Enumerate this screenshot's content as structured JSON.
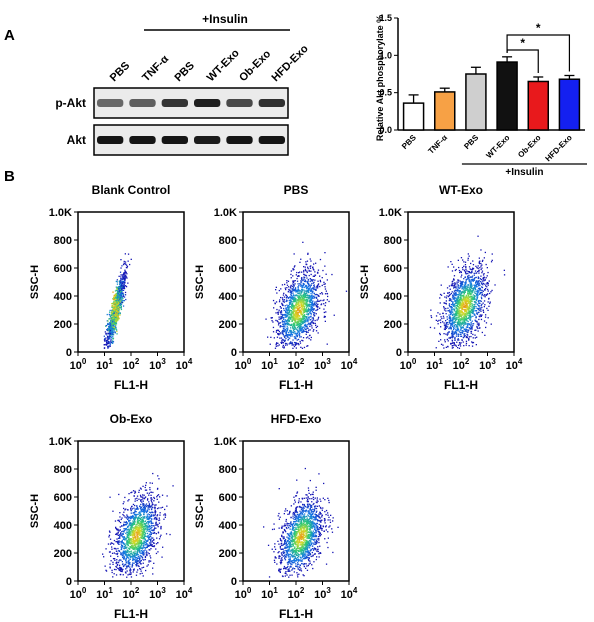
{
  "panel_a": {
    "label": "A",
    "western_blot": {
      "insulin_header": "+Insulin",
      "lanes": [
        "PBS",
        "TNF-α",
        "PBS",
        "WT-Exo",
        "Ob-Exo",
        "HFD-Exo"
      ],
      "rows": [
        {
          "label": "p-Akt",
          "intensity": [
            0.55,
            0.6,
            0.8,
            0.9,
            0.7,
            0.82
          ]
        },
        {
          "label": "Akt",
          "intensity": [
            0.95,
            0.95,
            0.95,
            0.92,
            0.95,
            0.95
          ]
        }
      ]
    }
  },
  "panel_b": {
    "label": "B"
  },
  "chart_data": [
    {
      "type": "bar",
      "title": "",
      "ylabel": "Relative Akt phosphorylate %",
      "xlabel": "",
      "group_label": "+Insulin",
      "categories": [
        "PBS",
        "TNF-α",
        "PBS",
        "WT-Exo",
        "Ob-Exo",
        "HFD-Exo"
      ],
      "values": [
        0.36,
        0.51,
        0.75,
        0.91,
        0.65,
        0.68
      ],
      "errors": [
        0.11,
        0.05,
        0.09,
        0.07,
        0.06,
        0.05
      ],
      "colors": [
        "#ffffff",
        "#f7a145",
        "#cfcfcf",
        "#111111",
        "#e8191c",
        "#1420f0"
      ],
      "ylim": [
        0,
        1.5
      ],
      "yticks": [
        "0.0",
        "0.5",
        "1.0",
        "1.5"
      ],
      "significance": [
        {
          "from": 3,
          "to": 4,
          "label": "*"
        },
        {
          "from": 3,
          "to": 5,
          "label": "*"
        }
      ]
    },
    {
      "type": "scatter",
      "title": "Blank Control",
      "xlabel": "FL1-H",
      "ylabel": "SSC-H",
      "x_scale": "log",
      "xticks": [
        "10",
        "10",
        "10",
        "10",
        "10"
      ],
      "xtick_exp": [
        "0",
        "1",
        "2",
        "3",
        "4"
      ],
      "yticks": [
        "0",
        "200",
        "400",
        "600",
        "800",
        "1.0K"
      ],
      "xlim": [
        1,
        10000
      ],
      "ylim": [
        0,
        1000
      ],
      "density_center": [
        25,
        300
      ],
      "density_shape": "narrow diagonal"
    },
    {
      "type": "scatter",
      "title": "PBS",
      "xlabel": "FL1-H",
      "ylabel": "SSC-H",
      "x_scale": "log",
      "xticks": [
        "10",
        "10",
        "10",
        "10",
        "10"
      ],
      "xtick_exp": [
        "0",
        "1",
        "2",
        "3",
        "4"
      ],
      "yticks": [
        "0",
        "200",
        "400",
        "600",
        "800",
        "1.0K"
      ],
      "xlim": [
        1,
        10000
      ],
      "ylim": [
        0,
        1000
      ],
      "density_center": [
        120,
        300
      ],
      "density_shape": "broad"
    },
    {
      "type": "scatter",
      "title": "WT-Exo",
      "xlabel": "FL1-H",
      "ylabel": "SSC-H",
      "x_scale": "log",
      "xticks": [
        "10",
        "10",
        "10",
        "10",
        "10"
      ],
      "xtick_exp": [
        "0",
        "1",
        "2",
        "3",
        "4"
      ],
      "yticks": [
        "0",
        "200",
        "400",
        "600",
        "800",
        "1.0K"
      ],
      "xlim": [
        1,
        10000
      ],
      "ylim": [
        0,
        1000
      ],
      "density_center": [
        130,
        330
      ],
      "density_shape": "broad"
    },
    {
      "type": "scatter",
      "title": "Ob-Exo",
      "xlabel": "FL1-H",
      "ylabel": "SSC-H",
      "x_scale": "log",
      "xticks": [
        "10",
        "10",
        "10",
        "10",
        "10"
      ],
      "xtick_exp": [
        "0",
        "1",
        "2",
        "3",
        "4"
      ],
      "yticks": [
        "0",
        "200",
        "400",
        "600",
        "800",
        "1.0K"
      ],
      "xlim": [
        1,
        10000
      ],
      "ylim": [
        0,
        1000
      ],
      "density_center": [
        150,
        330
      ],
      "density_shape": "broad"
    },
    {
      "type": "scatter",
      "title": "HFD-Exo",
      "xlabel": "FL1-H",
      "ylabel": "SSC-H",
      "x_scale": "log",
      "xticks": [
        "10",
        "10",
        "10",
        "10",
        "10"
      ],
      "xtick_exp": [
        "0",
        "1",
        "2",
        "3",
        "4"
      ],
      "yticks": [
        "0",
        "200",
        "400",
        "600",
        "800",
        "1.0K"
      ],
      "xlim": [
        1,
        10000
      ],
      "ylim": [
        0,
        1000
      ],
      "density_center": [
        150,
        320
      ],
      "density_shape": "broad"
    }
  ]
}
